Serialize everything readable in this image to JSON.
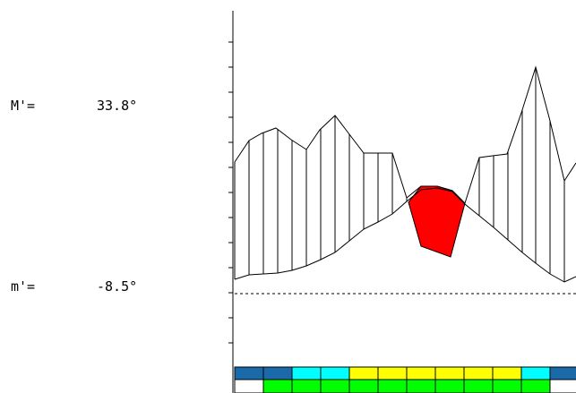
{
  "readouts": {
    "max_label": "M'=",
    "max_value": "33.8°",
    "min_label": "m'=",
    "min_value": "-8.5°"
  },
  "colors": {
    "hatch": "#000000",
    "negative_fill": "#ff0000",
    "dotted_line": "#000000",
    "bar_blue": "#1a6aaa",
    "bar_cyan": "#00ffff",
    "bar_yellow": "#ffff00",
    "bar_green": "#00ff00",
    "bar_white": "#ffffff"
  }
}
